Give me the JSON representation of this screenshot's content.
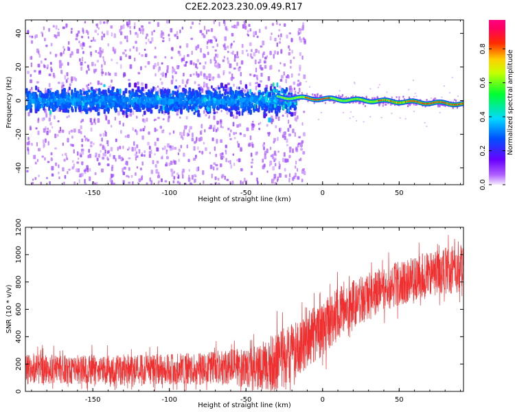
{
  "figure_title": "C2E2.2023.230.09.49.R17",
  "chart_data": [
    {
      "type": "heatmap",
      "title": "C2E2.2023.230.09.49.R17",
      "xlabel": "Height of straight line (km)",
      "ylabel": "Frequency (Hz)",
      "xlim": [
        -194,
        92
      ],
      "ylim": [
        -50,
        48
      ],
      "xticks": [
        -150,
        -100,
        -50,
        0,
        50
      ],
      "yticks": [
        -40,
        -20,
        0,
        20,
        40
      ],
      "xtick_labels": [
        "-150",
        "-100",
        "-50",
        "0",
        "50"
      ],
      "ytick_labels": [
        "-40",
        "-20",
        "0",
        "20",
        "40"
      ],
      "colorbar": {
        "label": "Normalized spectral amplitude",
        "range": [
          0,
          0.97
        ],
        "ticks": [
          0.0,
          0.2,
          0.4,
          0.6,
          0.8
        ],
        "tick_labels": [
          "0.0",
          "0.2",
          "0.4",
          "0.6",
          "0.8"
        ],
        "colormap": "hsv-like (purple→blue→cyan→green→yellow→red→magenta)"
      },
      "features": [
        {
          "description": "broad noisy band",
          "x_range": [
            -194,
            -30
          ],
          "freq_center": 0,
          "freq_halfwidth": 8
        },
        {
          "description": "narrowing signal line",
          "x_range": [
            -30,
            92
          ],
          "freq_start": 2,
          "freq_end": -2
        }
      ]
    },
    {
      "type": "line",
      "xlabel": "Height of straight line (km)",
      "ylabel": "SNR (10 * v/v)",
      "xlim": [
        -194,
        92
      ],
      "ylim": [
        0,
        1200
      ],
      "xticks": [
        -150,
        -100,
        -50,
        0,
        50
      ],
      "yticks": [
        0,
        200,
        400,
        600,
        800,
        1000,
        1200
      ],
      "xtick_labels": [
        "-150",
        "-100",
        "-50",
        "0",
        "50"
      ],
      "ytick_labels": [
        "0",
        "200",
        "400",
        "600",
        "800",
        "1000",
        "1200"
      ],
      "series": [
        {
          "name": "SNR",
          "color": "#f03030",
          "x": [
            -194,
            -170,
            -150,
            -130,
            -110,
            -90,
            -70,
            -50,
            -40,
            -30,
            -20,
            -10,
            0,
            10,
            20,
            30,
            40,
            50,
            60,
            70,
            80,
            92
          ],
          "values": [
            160,
            160,
            160,
            155,
            160,
            165,
            170,
            175,
            185,
            200,
            280,
            380,
            460,
            560,
            640,
            700,
            750,
            790,
            820,
            860,
            880,
            900
          ],
          "noise_amplitude": [
            120,
            120,
            120,
            120,
            120,
            130,
            140,
            160,
            180,
            260,
            240,
            230,
            220,
            220,
            200,
            190,
            180,
            180,
            180,
            180,
            190,
            200
          ]
        }
      ]
    }
  ]
}
